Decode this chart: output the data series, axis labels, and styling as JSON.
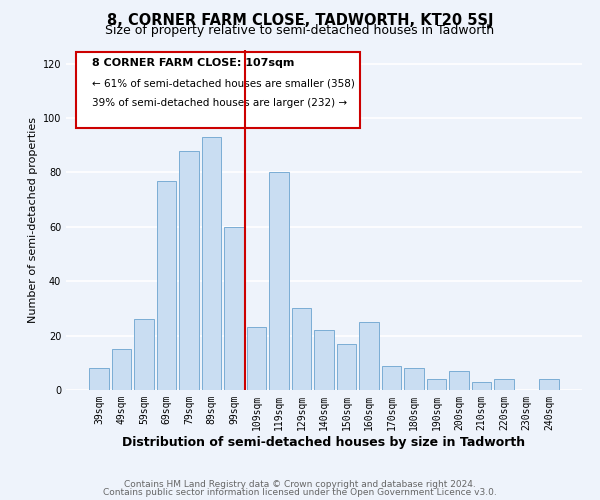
{
  "title": "8, CORNER FARM CLOSE, TADWORTH, KT20 5SJ",
  "subtitle": "Size of property relative to semi-detached houses in Tadworth",
  "xlabel": "Distribution of semi-detached houses by size in Tadworth",
  "ylabel": "Number of semi-detached properties",
  "bar_labels": [
    "39sqm",
    "49sqm",
    "59sqm",
    "69sqm",
    "79sqm",
    "89sqm",
    "99sqm",
    "109sqm",
    "119sqm",
    "129sqm",
    "140sqm",
    "150sqm",
    "160sqm",
    "170sqm",
    "180sqm",
    "190sqm",
    "200sqm",
    "210sqm",
    "220sqm",
    "230sqm",
    "240sqm"
  ],
  "bar_values": [
    8,
    15,
    26,
    77,
    88,
    93,
    60,
    23,
    80,
    30,
    22,
    17,
    25,
    9,
    8,
    4,
    7,
    3,
    4,
    0,
    4
  ],
  "bar_color": "#c9ddf2",
  "bar_edge_color": "#7aadd4",
  "vline_color": "#cc0000",
  "annotation_title": "8 CORNER FARM CLOSE: 107sqm",
  "annotation_line1": "← 61% of semi-detached houses are smaller (358)",
  "annotation_line2": "39% of semi-detached houses are larger (232) →",
  "annotation_box_edge": "#cc0000",
  "ylim": [
    0,
    125
  ],
  "yticks": [
    0,
    20,
    40,
    60,
    80,
    100,
    120
  ],
  "footer1": "Contains HM Land Registry data © Crown copyright and database right 2024.",
  "footer2": "Contains public sector information licensed under the Open Government Licence v3.0.",
  "background_color": "#eef3fb",
  "grid_color": "#ffffff",
  "title_fontsize": 10.5,
  "subtitle_fontsize": 9,
  "xlabel_fontsize": 9,
  "ylabel_fontsize": 8,
  "tick_fontsize": 7,
  "footer_fontsize": 6.5,
  "ann_title_fontsize": 8,
  "ann_text_fontsize": 7.5
}
